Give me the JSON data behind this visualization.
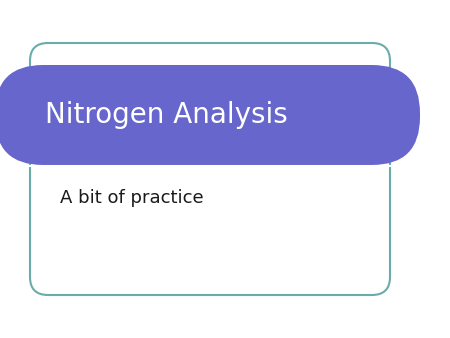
{
  "background_color": "#ffffff",
  "slide_bg": "#ffffff",
  "border_color": "#6aacaa",
  "banner_color": "#6666cc",
  "banner_text": "Nitrogen Analysis",
  "banner_text_color": "#ffffff",
  "separator_color": "#ffffff",
  "body_text": "A bit of practice",
  "body_text_color": "#1a1a1a",
  "title_fontsize": 20,
  "body_fontsize": 13,
  "figsize": [
    4.5,
    3.38
  ],
  "dpi": 100
}
